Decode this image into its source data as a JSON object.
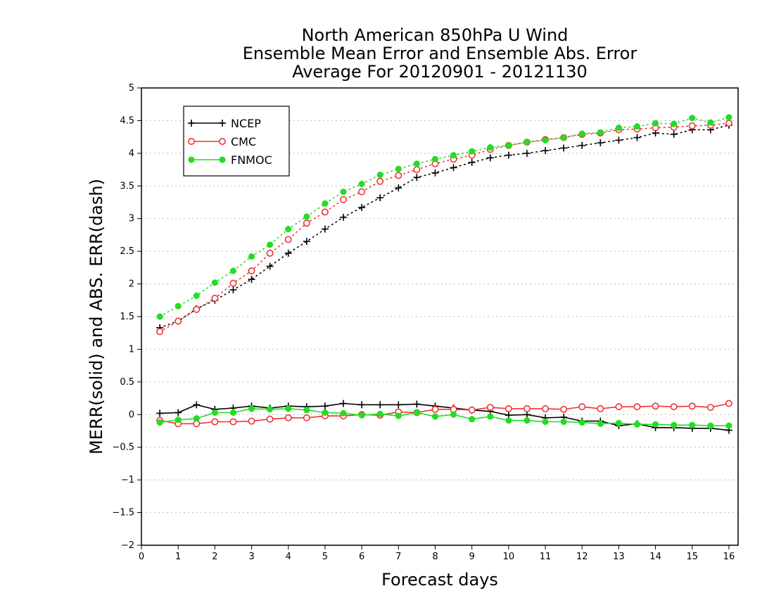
{
  "chart_data": {
    "type": "line",
    "title": [
      "North American 850hPa U Wind",
      "Ensemble Mean Error and Ensemble Abs. Error",
      "Average For 20120901 - 20121130"
    ],
    "xlabel": "Forecast days",
    "ylabel": "MERR(solid) and ABS. ERR(dash)",
    "xlim": [
      0,
      16.25
    ],
    "ylim": [
      -2,
      5
    ],
    "x_ticks": [
      0,
      1,
      2,
      3,
      4,
      5,
      6,
      7,
      8,
      9,
      10,
      11,
      12,
      13,
      14,
      15,
      16
    ],
    "x_tick_labels": [
      "0",
      "1",
      "2",
      "3",
      "4",
      "5",
      "6",
      "7",
      "8",
      "9",
      "10",
      "11",
      "12",
      "13",
      "14",
      "15",
      "16"
    ],
    "y_ticks": [
      5,
      4.5,
      4,
      3.5,
      3,
      2.5,
      2,
      1.5,
      1,
      0.5,
      0,
      -0.5,
      -1,
      -1.5,
      -2
    ],
    "y_tick_labels": [
      "5",
      "4.5",
      "4",
      "3.5",
      "3",
      "2.5",
      "2",
      "1.5",
      "1",
      "0.5",
      "0",
      "−0.5",
      "−1",
      "−1.5",
      "−2"
    ],
    "grid": true,
    "legend_position": "top-left",
    "x": [
      0.5,
      1,
      1.5,
      2,
      2.5,
      3,
      3.5,
      4,
      4.5,
      5,
      5.5,
      6,
      6.5,
      7,
      7.5,
      8,
      8.5,
      9,
      9.5,
      10,
      10.5,
      11,
      11.5,
      12,
      12.5,
      13,
      13.5,
      14,
      14.5,
      15,
      15.5,
      16
    ],
    "series": [
      {
        "name": "NCEP",
        "color": "#000000",
        "marker": "plus",
        "merr": [
          0.02,
          0.03,
          0.15,
          0.08,
          0.1,
          0.13,
          0.1,
          0.13,
          0.12,
          0.13,
          0.17,
          0.15,
          0.15,
          0.15,
          0.16,
          0.13,
          0.1,
          0.07,
          0.05,
          -0.01,
          0.0,
          -0.05,
          -0.04,
          -0.1,
          -0.1,
          -0.17,
          -0.14,
          -0.2,
          -0.2,
          -0.21,
          -0.21,
          -0.24
        ],
        "abs_err": [
          1.33,
          1.43,
          1.62,
          1.75,
          1.91,
          2.07,
          2.27,
          2.47,
          2.65,
          2.84,
          3.02,
          3.17,
          3.32,
          3.47,
          3.63,
          3.7,
          3.78,
          3.86,
          3.93,
          3.97,
          4.0,
          4.04,
          4.08,
          4.12,
          4.16,
          4.2,
          4.24,
          4.31,
          4.29,
          4.36,
          4.36,
          4.43
        ]
      },
      {
        "name": "CMC",
        "color": "#ee3333",
        "marker": "open-circle",
        "merr": [
          -0.09,
          -0.14,
          -0.14,
          -0.11,
          -0.11,
          -0.1,
          -0.07,
          -0.05,
          -0.05,
          -0.02,
          -0.02,
          0.0,
          -0.01,
          0.04,
          0.03,
          0.08,
          0.08,
          0.07,
          0.11,
          0.09,
          0.09,
          0.09,
          0.08,
          0.12,
          0.09,
          0.12,
          0.12,
          0.13,
          0.12,
          0.13,
          0.11,
          0.17
        ],
        "abs_err": [
          1.27,
          1.43,
          1.61,
          1.78,
          2.01,
          2.2,
          2.47,
          2.68,
          2.93,
          3.1,
          3.29,
          3.41,
          3.57,
          3.66,
          3.75,
          3.84,
          3.91,
          3.97,
          4.06,
          4.12,
          4.17,
          4.21,
          4.24,
          4.29,
          4.31,
          4.36,
          4.37,
          4.39,
          4.4,
          4.42,
          4.43,
          4.46
        ]
      },
      {
        "name": "FNMOC",
        "color": "#22dd22",
        "marker": "filled-circle",
        "merr": [
          -0.12,
          -0.08,
          -0.06,
          0.03,
          0.03,
          0.09,
          0.08,
          0.09,
          0.07,
          0.03,
          0.02,
          -0.01,
          0.01,
          -0.02,
          0.03,
          -0.03,
          0.0,
          -0.07,
          -0.03,
          -0.09,
          -0.09,
          -0.11,
          -0.11,
          -0.12,
          -0.14,
          -0.13,
          -0.15,
          -0.15,
          -0.16,
          -0.16,
          -0.17,
          -0.17
        ],
        "abs_err": [
          1.5,
          1.66,
          1.82,
          2.02,
          2.2,
          2.42,
          2.6,
          2.84,
          3.03,
          3.23,
          3.41,
          3.53,
          3.67,
          3.76,
          3.84,
          3.91,
          3.97,
          4.03,
          4.09,
          4.12,
          4.17,
          4.2,
          4.24,
          4.3,
          4.32,
          4.39,
          4.41,
          4.46,
          4.45,
          4.54,
          4.47,
          4.55
        ]
      }
    ]
  }
}
